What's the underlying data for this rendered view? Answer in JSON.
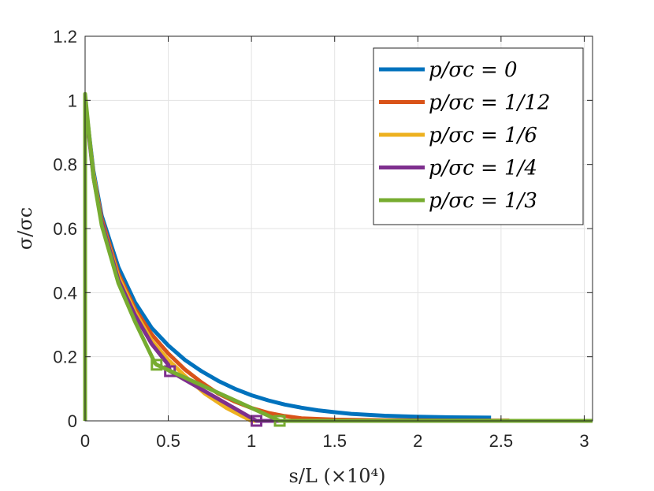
{
  "chart_data": {
    "type": "line",
    "xlabel": "s/L (×10⁴)",
    "ylabel": "σ/σc",
    "xlim": [
      0,
      3.05
    ],
    "ylim": [
      0,
      1.2
    ],
    "grid": true,
    "legend_position": "top-right",
    "x_ticks": [
      "0",
      "0.5",
      "1",
      "1.5",
      "2",
      "2.5",
      "3"
    ],
    "y_ticks": [
      "0",
      "0.2",
      "0.4",
      "0.6",
      "0.8",
      "1",
      "1.2"
    ],
    "series": [
      {
        "name": "p/σc = 0",
        "color": "#0072BD",
        "x": [
          0,
          0,
          0.05,
          0.1,
          0.2,
          0.3,
          0.4,
          0.5,
          0.6,
          0.7,
          0.8,
          0.9,
          1.0,
          1.1,
          1.2,
          1.3,
          1.4,
          1.5,
          1.6,
          1.8,
          2.0,
          2.2,
          2.44
        ],
        "y": [
          0,
          1.0,
          0.78,
          0.64,
          0.48,
          0.37,
          0.29,
          0.235,
          0.19,
          0.155,
          0.125,
          0.1,
          0.08,
          0.064,
          0.051,
          0.041,
          0.033,
          0.027,
          0.022,
          0.016,
          0.013,
          0.011,
          0.01
        ]
      },
      {
        "name": "p/σc = 1/12",
        "color": "#D95319",
        "x": [
          0,
          0,
          0.05,
          0.1,
          0.2,
          0.3,
          0.4,
          0.5,
          0.6,
          0.7,
          0.8,
          0.9,
          1.0,
          1.1,
          1.2,
          1.3,
          1.5,
          1.8,
          2.2,
          2.55
        ],
        "y": [
          0,
          1.0,
          0.77,
          0.63,
          0.46,
          0.35,
          0.27,
          0.21,
          0.16,
          0.12,
          0.085,
          0.06,
          0.04,
          0.025,
          0.015,
          0.008,
          0.004,
          0.002,
          0.001,
          0.001
        ]
      },
      {
        "name": "p/σc = 1/6",
        "color": "#EDB120",
        "x": [
          0,
          0,
          0.05,
          0.1,
          0.2,
          0.3,
          0.4,
          0.5,
          0.6,
          0.72,
          0.85,
          1.0,
          1.2,
          1.5,
          2.0,
          2.5,
          2.85
        ],
        "y": [
          0,
          1.0,
          0.77,
          0.62,
          0.45,
          0.34,
          0.25,
          0.19,
          0.14,
          0.085,
          0.04,
          0.0,
          0.0,
          0.0,
          0.0,
          0.0,
          0.0
        ]
      },
      {
        "name": "p/σc = 1/4",
        "color": "#7E2F8E",
        "x": [
          0,
          0,
          0.05,
          0.1,
          0.2,
          0.3,
          0.4,
          0.5,
          0.51,
          1.03,
          1.2,
          1.5,
          2.0,
          2.5,
          3.05
        ],
        "y": [
          0,
          1.0,
          0.76,
          0.62,
          0.44,
          0.33,
          0.24,
          0.175,
          0.155,
          0.0,
          0.0,
          0.0,
          0.0,
          0.0,
          0.0
        ],
        "markers": [
          {
            "x": 0.51,
            "y": 0.155
          },
          {
            "x": 1.03,
            "y": 0.0
          }
        ]
      },
      {
        "name": "p/σc = 1/3",
        "color": "#77AC30",
        "x": [
          0,
          0,
          0.05,
          0.1,
          0.2,
          0.3,
          0.42,
          0.43,
          1.17,
          1.5,
          2.0,
          2.5,
          3.05
        ],
        "y": [
          0,
          1.02,
          0.76,
          0.61,
          0.43,
          0.31,
          0.18,
          0.175,
          0.0,
          0.0,
          0.0,
          0.0,
          0.0
        ],
        "markers": [
          {
            "x": 0.43,
            "y": 0.175
          },
          {
            "x": 1.17,
            "y": 0.0
          }
        ]
      }
    ]
  }
}
